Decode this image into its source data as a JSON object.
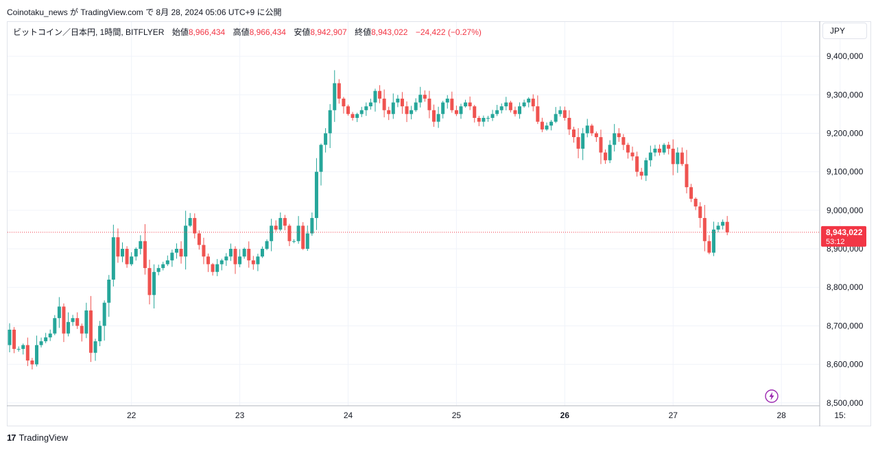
{
  "header": {
    "publish_line": "Coinotaku_news が TradingView.com で 8月 28, 2024 05:06 UTC+9 に公開"
  },
  "legend": {
    "symbol": "ビットコイン／日本円, 1時間, BITFLYER",
    "open_label": "始値",
    "open_value": "8,966,434",
    "high_label": "高値",
    "high_value": "8,966,434",
    "low_label": "安値",
    "low_value": "8,942,907",
    "close_label": "終値",
    "close_value": "8,943,022",
    "change": "−24,422 (−0.27%)"
  },
  "currency_button": {
    "label": "JPY"
  },
  "footer": {
    "brand": "TradingView",
    "mark": "17"
  },
  "colors": {
    "up": "#26a69a",
    "down": "#ef5350",
    "price_tag": "#f23645",
    "grid": "#f0f3fa",
    "bolt": "#9c27b0"
  },
  "chart_data": {
    "type": "candlestick",
    "title": "",
    "symbol": "BTC/JPY",
    "interval": "1時間",
    "exchange": "BITFLYER",
    "ylim": [
      8500000,
      9400000
    ],
    "y_ticks": [
      "9,400,000",
      "9,300,000",
      "9,200,000",
      "9,100,000",
      "9,000,000",
      "8,900,000",
      "8,800,000",
      "8,700,000",
      "8,600,000",
      "8,500,000"
    ],
    "x_ticks": [
      {
        "label": "22",
        "hours": 27
      },
      {
        "label": "23",
        "hours": 51
      },
      {
        "label": "24",
        "hours": 75
      },
      {
        "label": "25",
        "hours": 99
      },
      {
        "label": "26",
        "hours": 123,
        "bold": true
      },
      {
        "label": "27",
        "hours": 147
      },
      {
        "label": "28",
        "hours": 171
      },
      {
        "label": "15:",
        "hours": 184
      }
    ],
    "current_price": {
      "value": 8943022,
      "label": "8,943,022",
      "countdown": "53:12"
    },
    "closes": [
      8690000,
      8640000,
      8640000,
      8650000,
      8610000,
      8600000,
      8650000,
      8660000,
      8670000,
      8680000,
      8720000,
      8750000,
      8680000,
      8710000,
      8720000,
      8700000,
      8680000,
      8740000,
      8630000,
      8660000,
      8700000,
      8760000,
      8820000,
      8930000,
      8880000,
      8900000,
      8860000,
      8880000,
      8900000,
      8920000,
      8850000,
      8780000,
      8840000,
      8850000,
      8860000,
      8870000,
      8890000,
      8900000,
      8880000,
      8960000,
      8980000,
      8940000,
      8910000,
      8880000,
      8860000,
      8840000,
      8860000,
      8870000,
      8880000,
      8900000,
      8860000,
      8880000,
      8900000,
      8870000,
      8860000,
      8880000,
      8900000,
      8920000,
      8960000,
      8950000,
      8980000,
      8960000,
      8920000,
      8920000,
      8960000,
      8900000,
      8940000,
      8980000,
      9100000,
      9170000,
      9200000,
      9260000,
      9330000,
      9290000,
      9270000,
      9250000,
      9240000,
      9250000,
      9260000,
      9270000,
      9280000,
      9310000,
      9290000,
      9260000,
      9250000,
      9280000,
      9290000,
      9270000,
      9250000,
      9260000,
      9280000,
      9300000,
      9290000,
      9260000,
      9230000,
      9250000,
      9280000,
      9290000,
      9260000,
      9250000,
      9270000,
      9280000,
      9270000,
      9240000,
      9230000,
      9240000,
      9240000,
      9250000,
      9260000,
      9270000,
      9280000,
      9260000,
      9250000,
      9270000,
      9280000,
      9290000,
      9270000,
      9230000,
      9210000,
      9220000,
      9230000,
      9250000,
      9260000,
      9240000,
      9210000,
      9190000,
      9160000,
      9200000,
      9220000,
      9200000,
      9190000,
      9150000,
      9130000,
      9170000,
      9200000,
      9190000,
      9170000,
      9150000,
      9140000,
      9100000,
      9090000,
      9130000,
      9150000,
      9160000,
      9150000,
      9170000,
      9160000,
      9120000,
      9150000,
      9120000,
      9060000,
      9030000,
      9010000,
      8980000,
      8920000,
      8890000,
      8950000,
      8960000,
      8970000,
      8943022
    ]
  }
}
